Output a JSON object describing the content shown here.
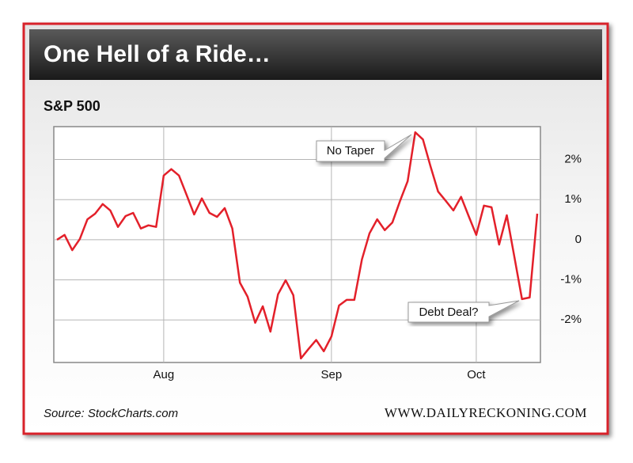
{
  "chart_data": {
    "type": "line",
    "title": "One Hell of a Ride…",
    "subtitle": "S&P 500",
    "source": "Source: StockCharts.com",
    "footer": "WWW.DAILYRECKONING.COM",
    "annotations": [
      "No Taper",
      "Debt Deal?"
    ],
    "color": "#e3202a",
    "grid": true,
    "categories": [
      null,
      null,
      null,
      null,
      null,
      null,
      null,
      null,
      null,
      null,
      null,
      null,
      null,
      null,
      "Aug",
      null,
      null,
      null,
      null,
      null,
      null,
      null,
      null,
      null,
      null,
      null,
      null,
      null,
      null,
      null,
      null,
      null,
      null,
      null,
      null,
      null,
      "Sep",
      null,
      null,
      null,
      null,
      null,
      null,
      null,
      null,
      null,
      null,
      null,
      null,
      null,
      null,
      null,
      null,
      null,
      null,
      "Oct",
      null,
      null,
      null,
      null,
      null,
      null,
      null,
      null
    ],
    "values": [
      0,
      0.12,
      -0.26,
      0.02,
      0.51,
      0.65,
      0.89,
      0.73,
      0.32,
      0.59,
      0.67,
      0.28,
      0.36,
      0.32,
      1.6,
      1.76,
      1.6,
      1.12,
      0.63,
      1.03,
      0.67,
      0.57,
      0.79,
      0.28,
      -1.07,
      -1.42,
      -2.07,
      -1.66,
      -2.29,
      -1.36,
      -1.01,
      -1.38,
      -2.96,
      -2.72,
      -2.5,
      -2.78,
      -2.41,
      -1.64,
      -1.5,
      -1.5,
      -0.49,
      0.16,
      0.51,
      0.24,
      0.43,
      0.97,
      1.46,
      2.68,
      2.5,
      1.83,
      1.2,
      0.97,
      0.73,
      1.07,
      0.59,
      0.12,
      0.85,
      0.81,
      -0.12,
      0.61,
      -0.43,
      -1.48,
      -1.44,
      0.65
    ],
    "ylim": [
      -3.06,
      2.82
    ],
    "yticks": [
      {
        "value": -2,
        "label": "-2%"
      },
      {
        "value": -1,
        "label": "-1%"
      },
      0,
      {
        "value": 1,
        "label": "1%"
      },
      {
        "value": 2,
        "label": "2%"
      }
    ]
  }
}
